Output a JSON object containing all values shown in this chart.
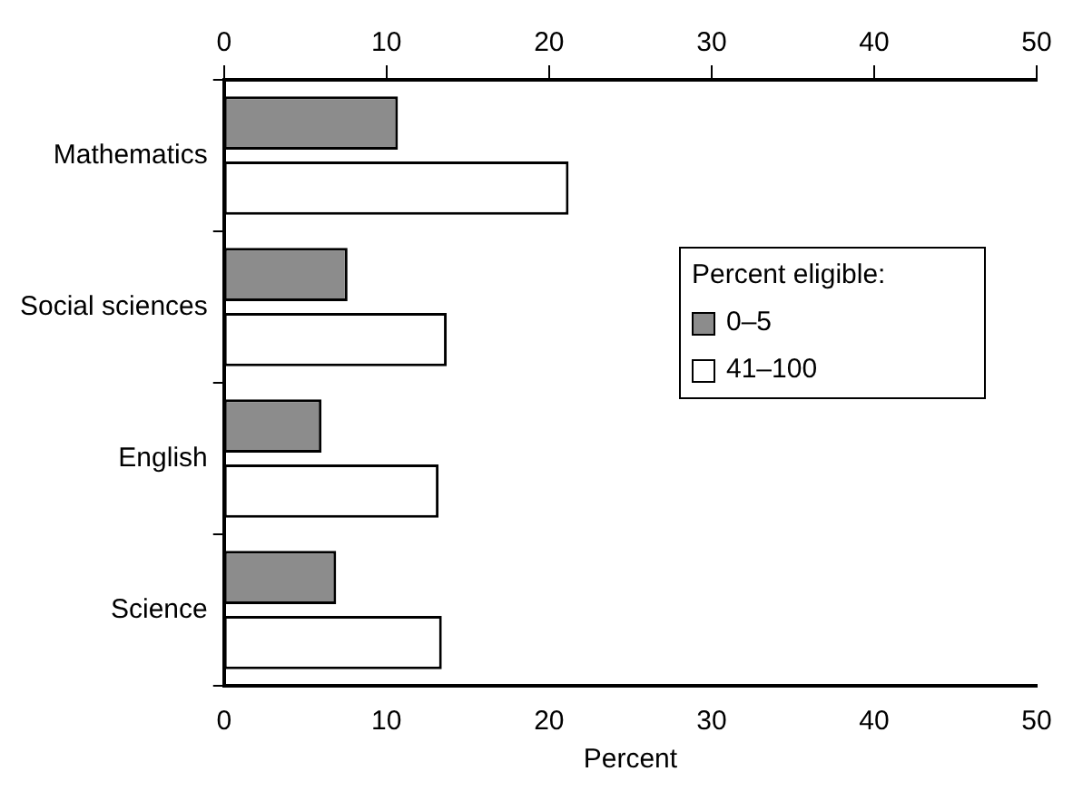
{
  "chart_data": {
    "type": "bar",
    "orientation": "horizontal",
    "categories": [
      "Mathematics",
      "Social sciences",
      "English",
      "Science"
    ],
    "series": [
      {
        "name": "0–5",
        "color": "#8c8c8c",
        "values": [
          10.7,
          7.6,
          6.0,
          6.9
        ]
      },
      {
        "name": "41–100",
        "color": "#ffffff",
        "values": [
          21.2,
          13.7,
          13.2,
          13.4
        ]
      }
    ],
    "xlabel": "Percent",
    "xlim": [
      0,
      50
    ],
    "xticks": [
      0,
      10,
      20,
      30,
      40,
      50
    ],
    "x2lim": [
      0,
      50
    ],
    "x2ticks": [
      0,
      10,
      20,
      30,
      40,
      50
    ],
    "legend": "right",
    "legend_title": "Percent eligible:",
    "grid": false
  }
}
